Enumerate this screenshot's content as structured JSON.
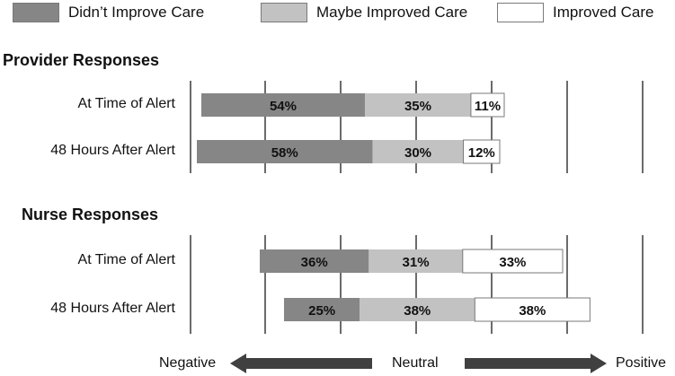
{
  "legend": {
    "items": [
      {
        "label": "Didn’t Improve Care",
        "color": "#868686"
      },
      {
        "label": "Maybe Improved Care",
        "color": "#c2c2c2"
      },
      {
        "label": "Improved Care",
        "color": "#ffffff"
      }
    ]
  },
  "axis": {
    "negative_label": "Negative",
    "neutral_label": "Neutral",
    "positive_label": "Positive"
  },
  "chart_data": {
    "type": "bar",
    "stacked": true,
    "orientation": "horizontal",
    "series_names": [
      "Didn’t Improve Care",
      "Maybe Improved Care",
      "Improved Care"
    ],
    "colors": [
      "#868686",
      "#c2c2c2",
      "#ffffff"
    ],
    "value_unit": "%",
    "groups": [
      {
        "title": "Provider Responses",
        "categories": [
          "At Time of Alert",
          "48 Hours After Alert"
        ],
        "values": [
          [
            54,
            35,
            11
          ],
          [
            58,
            30,
            12
          ]
        ]
      },
      {
        "title": "Nurse Responses",
        "categories": [
          "At Time of Alert",
          "48 Hours After Alert"
        ],
        "values": [
          [
            36,
            31,
            33
          ],
          [
            25,
            38,
            38
          ]
        ]
      }
    ],
    "grid": true
  }
}
